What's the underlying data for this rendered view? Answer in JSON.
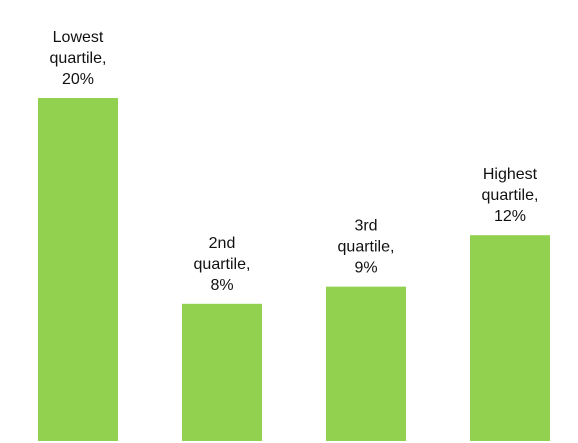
{
  "chart_data": {
    "type": "bar",
    "title": "",
    "xlabel": "",
    "ylabel": "",
    "categories": [
      "Lowest quartile",
      "2nd quartile",
      "3rd quartile",
      "Highest quartile"
    ],
    "values": [
      20,
      8,
      9,
      12
    ],
    "value_unit": "%",
    "ylim": [
      0,
      20
    ],
    "grid": false,
    "legend": "none",
    "bar_color": "#92D050",
    "data_labels": [
      [
        "Lowest",
        "quartile,",
        "20%"
      ],
      [
        "2nd",
        "quartile,",
        "8%"
      ],
      [
        "3rd",
        "quartile,",
        "9%"
      ],
      [
        "Highest",
        "quartile,",
        "12%"
      ]
    ]
  }
}
